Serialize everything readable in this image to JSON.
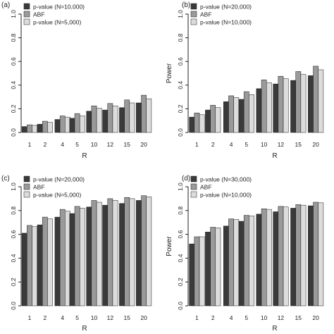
{
  "colors": {
    "series": [
      "#3a3a3a",
      "#9a9a9a",
      "#dcdcdc"
    ],
    "axis": "#222222"
  },
  "chart_data": [
    {
      "type": "bar",
      "panel_label": "(a)",
      "categories": [
        "1",
        "2",
        "4",
        "5",
        "10",
        "12",
        "15",
        "20"
      ],
      "xlabel": "R",
      "ylabel": "",
      "ylim": [
        0,
        1.0
      ],
      "yticks": [
        "0.0",
        "0.2",
        "0.4",
        "0.6",
        "0.8",
        "1.0"
      ],
      "legend": "top-left",
      "series": [
        {
          "name": "p-value (N=10,000)",
          "values": [
            0.05,
            0.07,
            0.11,
            0.12,
            0.18,
            0.19,
            0.21,
            0.25
          ]
        },
        {
          "name": "ABF",
          "values": [
            0.065,
            0.095,
            0.14,
            0.16,
            0.225,
            0.245,
            0.275,
            0.315
          ]
        },
        {
          "name": "p-value (N=5,000)",
          "values": [
            0.06,
            0.085,
            0.13,
            0.14,
            0.205,
            0.225,
            0.25,
            0.285
          ]
        }
      ]
    },
    {
      "type": "bar",
      "panel_label": "(b)",
      "categories": [
        "1",
        "2",
        "4",
        "5",
        "10",
        "12",
        "15",
        "20"
      ],
      "xlabel": "R",
      "ylabel": "Power",
      "ylim": [
        0,
        1.0
      ],
      "yticks": [
        "0.0",
        "0.2",
        "0.4",
        "0.6",
        "0.8",
        "1.0"
      ],
      "legend": "top-left",
      "series": [
        {
          "name": "p-value (N=20,000)",
          "values": [
            0.13,
            0.19,
            0.26,
            0.28,
            0.37,
            0.41,
            0.44,
            0.48
          ]
        },
        {
          "name": "ABF",
          "values": [
            0.165,
            0.23,
            0.31,
            0.345,
            0.445,
            0.475,
            0.515,
            0.56
          ]
        },
        {
          "name": "p-value (N=10,000)",
          "values": [
            0.15,
            0.21,
            0.295,
            0.32,
            0.42,
            0.455,
            0.49,
            0.53
          ]
        }
      ]
    },
    {
      "type": "bar",
      "panel_label": "(c)",
      "categories": [
        "1",
        "2",
        "4",
        "5",
        "10",
        "12",
        "15",
        "20"
      ],
      "xlabel": "R",
      "ylabel": "",
      "ylim": [
        0,
        1.0
      ],
      "yticks": [
        "0.0",
        "0.2",
        "0.4",
        "0.6",
        "0.8",
        "1.0"
      ],
      "legend": "top-left",
      "series": [
        {
          "name": "p-value (N=20,000)",
          "values": [
            0.61,
            0.68,
            0.745,
            0.775,
            0.83,
            0.845,
            0.86,
            0.885
          ]
        },
        {
          "name": "ABF",
          "values": [
            0.675,
            0.745,
            0.81,
            0.835,
            0.885,
            0.9,
            0.91,
            0.925
          ]
        },
        {
          "name": "p-value (N=5,000)",
          "values": [
            0.665,
            0.73,
            0.795,
            0.82,
            0.87,
            0.885,
            0.9,
            0.915
          ]
        }
      ]
    },
    {
      "type": "bar",
      "panel_label": "(d)",
      "categories": [
        "1",
        "2",
        "4",
        "5",
        "10",
        "12",
        "15",
        "20"
      ],
      "xlabel": "R",
      "ylabel": "Power",
      "ylim": [
        0,
        1.0
      ],
      "yticks": [
        "0.0",
        "0.2",
        "0.4",
        "0.6",
        "0.8",
        "1.0"
      ],
      "legend": "top-left",
      "series": [
        {
          "name": "p-value (N=30,000)",
          "values": [
            0.52,
            0.62,
            0.67,
            0.71,
            0.77,
            0.79,
            0.82,
            0.84
          ]
        },
        {
          "name": "ABF",
          "values": [
            0.58,
            0.66,
            0.73,
            0.76,
            0.815,
            0.835,
            0.85,
            0.87
          ]
        },
        {
          "name": "p-value (N=10,000)",
          "values": [
            0.58,
            0.655,
            0.725,
            0.755,
            0.81,
            0.83,
            0.845,
            0.865
          ]
        }
      ]
    }
  ]
}
